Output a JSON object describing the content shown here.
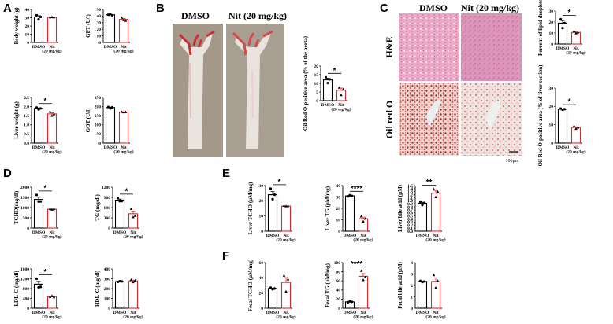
{
  "panel_labels": [
    "A",
    "B",
    "C",
    "D",
    "E",
    "F"
  ],
  "categories": [
    "DMSO",
    "Nit",
    "(20 mg/kg)"
  ],
  "colors": {
    "dmso": "#000000",
    "nit": "#e8262a"
  },
  "panel_b": {
    "image_labels": [
      "DMSO",
      "Nit (20 mg/kg)"
    ]
  },
  "panel_c": {
    "column_labels": [
      "DMSO",
      "Nit (20 mg/kg)"
    ],
    "row_labels": [
      "H&E",
      "Oil red O"
    ],
    "scale_bar": "100μm"
  },
  "chart_data": [
    {
      "id": "bw",
      "type": "bar",
      "panel": "A",
      "ylabel": "Body weight (g)",
      "ylim": [
        0,
        40
      ],
      "yticks": [
        0,
        10,
        20,
        30,
        40
      ],
      "series": [
        {
          "name": "DMSO",
          "values": [
            31
          ],
          "points": [
            33,
            28,
            31
          ]
        },
        {
          "name": "Nit",
          "values": [
            30.5
          ],
          "points": [
            30.5,
            30.7,
            30.5
          ]
        }
      ],
      "sig": ""
    },
    {
      "id": "gpt",
      "type": "bar",
      "panel": "A",
      "ylabel": "GPT (U/l)",
      "ylim": [
        0,
        50
      ],
      "yticks": [
        0,
        10,
        20,
        30,
        40,
        50
      ],
      "series": [
        {
          "name": "DMSO",
          "values": [
            42
          ],
          "points": [
            42,
            43,
            41
          ]
        },
        {
          "name": "Nit",
          "values": [
            35
          ],
          "points": [
            37.5,
            34,
            33
          ]
        }
      ],
      "sig": ""
    },
    {
      "id": "lw",
      "type": "bar",
      "panel": "A",
      "ylabel": "Liver weight (g)",
      "ylim": [
        0,
        2.5
      ],
      "yticks": [
        0,
        0.5,
        1.0,
        1.5,
        2.0,
        2.5
      ],
      "series": [
        {
          "name": "DMSO",
          "values": [
            1.9
          ],
          "points": [
            1.95,
            1.85,
            1.9
          ]
        },
        {
          "name": "Nit",
          "values": [
            1.6
          ],
          "points": [
            1.72,
            1.5,
            1.58
          ]
        }
      ],
      "sig": "*"
    },
    {
      "id": "got",
      "type": "bar",
      "panel": "A",
      "ylabel": "GOT (U/l)",
      "ylim": [
        0,
        250
      ],
      "yticks": [
        0,
        50,
        100,
        150,
        200,
        250
      ],
      "series": [
        {
          "name": "DMSO",
          "values": [
            195
          ],
          "points": [
            198,
            190,
            196
          ]
        },
        {
          "name": "Nit",
          "values": [
            170
          ],
          "points": [
            171,
            169,
            170
          ]
        }
      ],
      "sig": ""
    },
    {
      "id": "oilb",
      "type": "bar",
      "panel": "B",
      "ylabel": "Oil Red O-positive area (% of the aorta)",
      "ylim": [
        0,
        20
      ],
      "yticks": [
        0,
        5,
        10,
        15,
        20
      ],
      "series": [
        {
          "name": "DMSO",
          "values": [
            12
          ],
          "points": [
            13.5,
            10.2,
            12.3
          ]
        },
        {
          "name": "Nit",
          "values": [
            6
          ],
          "points": [
            7.5,
            3.2,
            6.5
          ]
        }
      ],
      "sig": "*"
    },
    {
      "id": "lipid",
      "type": "bar",
      "panel": "C",
      "ylabel": "Percent of lipid droplets",
      "ylim": [
        0,
        30
      ],
      "yticks": [
        0,
        10,
        20,
        30
      ],
      "series": [
        {
          "name": "DMSO",
          "values": [
            19
          ],
          "points": [
            22.5,
            14.5,
            19
          ]
        },
        {
          "name": "Nit",
          "values": [
            10.5
          ],
          "points": [
            11.5,
            9.8,
            10.5
          ]
        }
      ],
      "sig": "*"
    },
    {
      "id": "oilc",
      "type": "bar",
      "panel": "C",
      "ylabel": "Oil Red O-positive area (% of liver section)",
      "ylim": [
        0,
        30
      ],
      "yticks": [
        0,
        10,
        20,
        30
      ],
      "series": [
        {
          "name": "DMSO",
          "values": [
            18.5
          ],
          "points": [
            18.8,
            18.2,
            18.5
          ]
        },
        {
          "name": "Nit",
          "values": [
            8.5
          ],
          "points": [
            9.3,
            7.8,
            8.5
          ]
        }
      ],
      "sig": "*"
    },
    {
      "id": "tcho",
      "type": "bar",
      "panel": "D",
      "ylabel": "TCHO(mg/dl)",
      "ylim": [
        0,
        2000
      ],
      "yticks": [
        0,
        500,
        1000,
        1500,
        2000
      ],
      "series": [
        {
          "name": "DMSO",
          "values": [
            1400
          ],
          "points": [
            1620,
            1300,
            1300
          ]
        },
        {
          "name": "Nit",
          "values": [
            920
          ],
          "points": [
            930,
            900,
            925
          ]
        }
      ],
      "sig": "*"
    },
    {
      "id": "tg",
      "type": "bar",
      "panel": "D",
      "ylabel": "TG (mg/dl)",
      "ylim": [
        0,
        1200
      ],
      "yticks": [
        0,
        300,
        600,
        900,
        1200
      ],
      "series": [
        {
          "name": "DMSO",
          "values": [
            820
          ],
          "points": [
            880,
            790,
            790
          ]
        },
        {
          "name": "Nit",
          "values": [
            420
          ],
          "points": [
            560,
            320,
            360
          ]
        }
      ],
      "sig": "*"
    },
    {
      "id": "ldl",
      "type": "bar",
      "panel": "D",
      "ylabel": "LDL-C (mg/dl)",
      "ylim": [
        0,
        1600
      ],
      "yticks": [
        0,
        400,
        800,
        1200,
        1600
      ],
      "series": [
        {
          "name": "DMSO",
          "values": [
            980
          ],
          "points": [
            1200,
            850,
            870
          ]
        },
        {
          "name": "Nit",
          "values": [
            470
          ],
          "points": [
            460,
            500,
            450
          ]
        }
      ],
      "sig": "*"
    },
    {
      "id": "hdl",
      "type": "bar",
      "panel": "D",
      "ylabel": "HDL-C (mg/dl)",
      "ylim": [
        0,
        400
      ],
      "yticks": [
        0,
        100,
        200,
        300,
        400
      ],
      "series": [
        {
          "name": "DMSO",
          "values": [
            272
          ],
          "points": [
            268,
            275,
            273
          ]
        },
        {
          "name": "Nit",
          "values": [
            278
          ],
          "points": [
            290,
            265,
            282
          ]
        }
      ],
      "sig": ""
    },
    {
      "id": "ltcho",
      "type": "bar",
      "panel": "E",
      "ylabel": "Liver TCHO (μM/mg)",
      "ylim": [
        0,
        30
      ],
      "yticks": [
        0,
        10,
        20,
        30
      ],
      "series": [
        {
          "name": "DMSO",
          "values": [
            24
          ],
          "points": [
            28,
            21,
            24
          ]
        },
        {
          "name": "Nit",
          "values": [
            16.5
          ],
          "points": [
            16.7,
            16.4,
            16.5
          ]
        }
      ],
      "sig": "*"
    },
    {
      "id": "ltg",
      "type": "bar",
      "panel": "E",
      "ylabel": "Liver TG (μM/mg)",
      "ylim": [
        0,
        40
      ],
      "yticks": [
        0,
        10,
        20,
        30,
        40
      ],
      "series": [
        {
          "name": "DMSO",
          "values": [
            31
          ],
          "points": [
            30.5,
            31.5,
            31
          ]
        },
        {
          "name": "Nit",
          "values": [
            11
          ],
          "points": [
            13,
            8.5,
            11
          ]
        }
      ],
      "sig": "****"
    },
    {
      "id": "lba",
      "type": "bar",
      "panel": "E",
      "ylabel": "Liver bile acid (μM)",
      "ylim": [
        0,
        1.5
      ],
      "yticks": [
        0,
        0.1,
        0.2,
        0.3,
        0.4,
        0.5,
        0.6,
        0.7,
        0.8,
        0.9,
        1.0,
        1.1,
        1.2,
        1.3,
        1.4,
        1.5
      ],
      "series": [
        {
          "name": "DMSO",
          "values": [
            0.92
          ],
          "points": [
            0.97,
            0.86,
            0.93
          ]
        },
        {
          "name": "Nit",
          "values": [
            1.25
          ],
          "points": [
            1.38,
            1.12,
            1.3
          ]
        }
      ],
      "sig": "**"
    },
    {
      "id": "ftcho",
      "type": "bar",
      "panel": "F",
      "ylabel": "Fecal TCHO (μM/mg)",
      "ylim": [
        0,
        60
      ],
      "yticks": [
        0,
        20,
        40,
        60
      ],
      "series": [
        {
          "name": "DMSO",
          "values": [
            26
          ],
          "points": [
            27,
            25,
            26
          ]
        },
        {
          "name": "Nit",
          "values": [
            34
          ],
          "points": [
            43,
            22,
            38
          ]
        }
      ],
      "sig": ""
    },
    {
      "id": "ftg",
      "type": "bar",
      "panel": "F",
      "ylabel": "Fecal TG (μM/mg)",
      "ylim": [
        0,
        100
      ],
      "yticks": [
        0,
        20,
        40,
        60,
        80,
        100
      ],
      "series": [
        {
          "name": "DMSO",
          "values": [
            14
          ],
          "points": [
            13,
            15,
            14
          ]
        },
        {
          "name": "Nit",
          "values": [
            70
          ],
          "points": [
            82,
            62,
            68
          ]
        }
      ],
      "sig": "****"
    },
    {
      "id": "fba",
      "type": "bar",
      "panel": "F",
      "ylabel": "Fecal bile acid (μM)",
      "ylim": [
        0,
        4
      ],
      "yticks": [
        0,
        1,
        2,
        3,
        4
      ],
      "series": [
        {
          "name": "DMSO",
          "values": [
            2.35
          ],
          "points": [
            2.4,
            2.3,
            2.35
          ]
        },
        {
          "name": "Nit",
          "values": [
            2.35
          ],
          "points": [
            2.9,
            1.8,
            2.4
          ]
        }
      ],
      "sig": ""
    }
  ]
}
